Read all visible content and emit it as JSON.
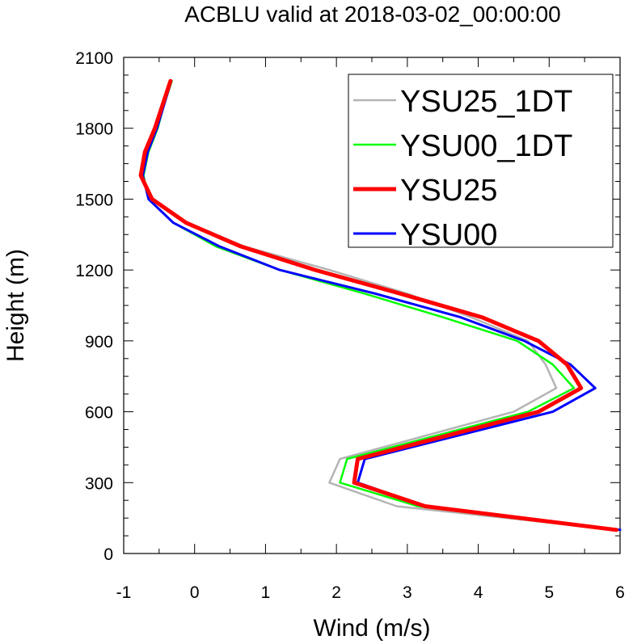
{
  "chart_data": {
    "type": "line",
    "title": "ACBLU valid at 2018-03-02_00:00:00",
    "xlabel": "Wind (m/s)",
    "ylabel": "Height (m)",
    "xlim": [
      -1,
      6
    ],
    "ylim": [
      0,
      2100
    ],
    "xticks": [
      -1,
      0,
      1,
      2,
      3,
      4,
      5,
      6
    ],
    "yticks": [
      0,
      300,
      600,
      900,
      1200,
      1500,
      1800,
      2100
    ],
    "xtick_labels": [
      "-1",
      "0",
      "1",
      "2",
      "3",
      "4",
      "5",
      "6"
    ],
    "ytick_labels": [
      "0",
      "300",
      "600",
      "900",
      "1200",
      "1500",
      "1800",
      "2100"
    ],
    "legend_position": "top-right",
    "series": [
      {
        "name": "YSU25_1DT",
        "color": "#b4b4b4",
        "width": 2.5,
        "points": [
          [
            5.95,
            100
          ],
          [
            2.85,
            200
          ],
          [
            1.9,
            300
          ],
          [
            2.05,
            400
          ],
          [
            4.5,
            600
          ],
          [
            5.1,
            700
          ],
          [
            4.95,
            800
          ],
          [
            4.7,
            900
          ],
          [
            3.9,
            1000
          ],
          [
            3.0,
            1100
          ],
          [
            1.9,
            1200
          ],
          [
            0.7,
            1300
          ],
          [
            -0.1,
            1400
          ],
          [
            -0.6,
            1500
          ],
          [
            -0.75,
            1600
          ],
          [
            -0.7,
            1700
          ],
          [
            -0.55,
            1800
          ],
          [
            -0.45,
            1900
          ],
          [
            -0.33,
            2000
          ]
        ]
      },
      {
        "name": "YSU00_1DT",
        "color": "#00ff00",
        "width": 2.5,
        "points": [
          [
            5.85,
            100
          ],
          [
            3.15,
            200
          ],
          [
            2.05,
            300
          ],
          [
            2.15,
            400
          ],
          [
            4.7,
            600
          ],
          [
            5.35,
            700
          ],
          [
            5.05,
            800
          ],
          [
            4.55,
            900
          ],
          [
            3.5,
            1000
          ],
          [
            2.4,
            1100
          ],
          [
            1.2,
            1200
          ],
          [
            0.3,
            1300
          ],
          [
            -0.3,
            1400
          ],
          [
            -0.65,
            1500
          ],
          [
            -0.72,
            1600
          ],
          [
            -0.65,
            1700
          ],
          [
            -0.52,
            1800
          ],
          [
            -0.43,
            1900
          ],
          [
            -0.32,
            2000
          ]
        ]
      },
      {
        "name": "YSU25",
        "color": "#ff0000",
        "width": 5,
        "points": [
          [
            5.95,
            100
          ],
          [
            3.25,
            200
          ],
          [
            2.25,
            300
          ],
          [
            2.3,
            400
          ],
          [
            4.85,
            600
          ],
          [
            5.45,
            700
          ],
          [
            5.25,
            800
          ],
          [
            4.85,
            900
          ],
          [
            4.05,
            1000
          ],
          [
            2.9,
            1100
          ],
          [
            1.7,
            1200
          ],
          [
            0.65,
            1300
          ],
          [
            -0.12,
            1400
          ],
          [
            -0.6,
            1500
          ],
          [
            -0.76,
            1600
          ],
          [
            -0.7,
            1700
          ],
          [
            -0.56,
            1800
          ],
          [
            -0.45,
            1900
          ],
          [
            -0.34,
            2000
          ]
        ]
      },
      {
        "name": "YSU00",
        "color": "#0000ff",
        "width": 3,
        "points": [
          [
            6.0,
            100
          ],
          [
            3.25,
            200
          ],
          [
            2.3,
            300
          ],
          [
            2.4,
            400
          ],
          [
            5.05,
            600
          ],
          [
            5.65,
            700
          ],
          [
            5.3,
            800
          ],
          [
            4.65,
            900
          ],
          [
            3.75,
            1000
          ],
          [
            2.55,
            1100
          ],
          [
            1.2,
            1200
          ],
          [
            0.35,
            1300
          ],
          [
            -0.3,
            1400
          ],
          [
            -0.65,
            1500
          ],
          [
            -0.73,
            1600
          ],
          [
            -0.66,
            1700
          ],
          [
            -0.53,
            1800
          ],
          [
            -0.43,
            1900
          ],
          [
            -0.33,
            2000
          ]
        ]
      }
    ]
  }
}
